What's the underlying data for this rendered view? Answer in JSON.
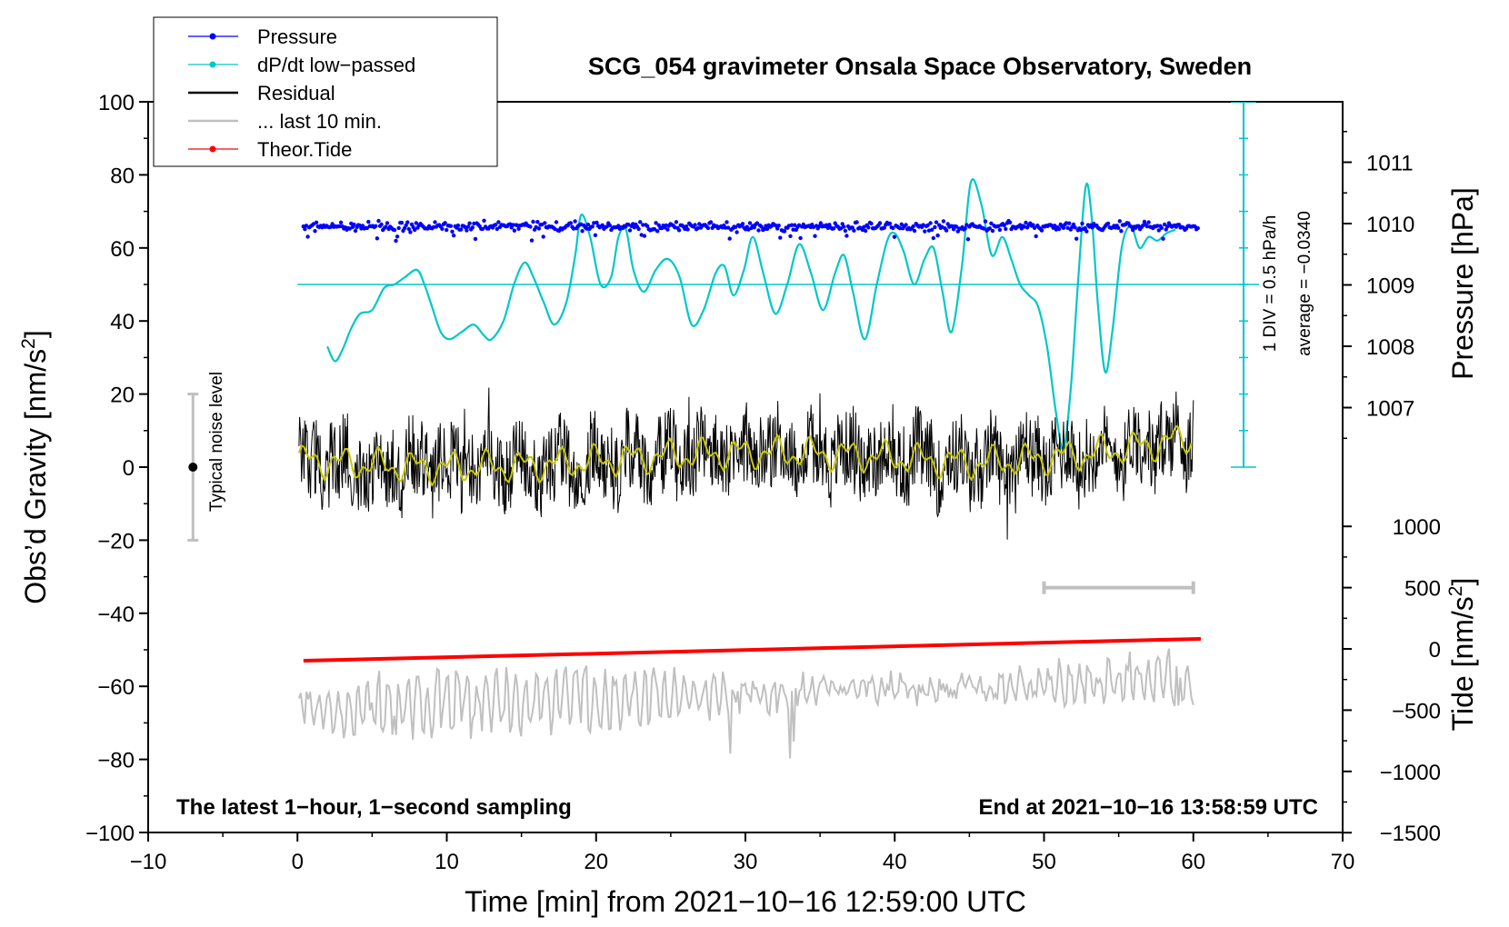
{
  "chart_data": {
    "type": "line",
    "title": "SCG_054 gravimeter Onsala Space Observatory, Sweden",
    "xlabel": "Time [min] from 2021−10−16 12:59:00 UTC",
    "ylabel_left": "Obs’d Gravity [nm/s",
    "ylabel_left_sup": "2",
    "ylabel_left_tail": "]",
    "ylabel_right_pressure": "Pressure [hPa]",
    "ylabel_right_tide": "Tide [nm/s",
    "ylabel_right_tide_sup": "2",
    "ylabel_right_tide_tail": "]",
    "xlim": [
      -10,
      70
    ],
    "ylim": [
      -100,
      100
    ],
    "x_ticks": [
      "−10",
      "0",
      "10",
      "20",
      "30",
      "40",
      "50",
      "60",
      "70"
    ],
    "y_ticks_left": [
      "100",
      "80",
      "60",
      "40",
      "20",
      "0",
      "−20",
      "−40",
      "−60",
      "−80",
      "−100"
    ],
    "pressure_ticks": [
      "1011",
      "1010",
      "1009",
      "1008",
      "1007"
    ],
    "tide_ticks": [
      "1000",
      "500",
      "0",
      "−500",
      "−1000",
      "−1500"
    ],
    "legend": [
      {
        "label": "Pressure",
        "color": "#0000ff",
        "style": "line-dot"
      },
      {
        "label": "dP/dt low−passed",
        "color": "#00c8c8",
        "style": "line-dot"
      },
      {
        "label": "Residual",
        "color": "#000000",
        "style": "line"
      },
      {
        "label": "... last 10 min.",
        "color": "#c0c0c0",
        "style": "line"
      },
      {
        "label": "Theor.Tide",
        "color": "#ff0000",
        "style": "line-dot"
      }
    ],
    "noise_label": "Typical noise level",
    "dpdt_scale": "1 DIV = 0.5 hPa/h",
    "dpdt_average": "average = −0.0340",
    "corner_left": "The latest 1−hour, 1−second sampling",
    "corner_right": "End at 2021−10−16 13:58:59 UTC",
    "series": {
      "pressure_hPa": {
        "x": [
          0.4,
          60.3
        ],
        "level": 1009.95
      },
      "dpdt_plot_units": {
        "x": [
          2.0,
          2.5,
          3.0,
          3.6,
          4.2,
          5.0,
          5.8,
          6.5,
          7.2,
          8.0,
          8.5,
          9.0,
          9.6,
          10.2,
          11.0,
          11.8,
          12.5,
          13.0,
          13.8,
          14.5,
          15.2,
          15.8,
          16.5,
          17.2,
          18.0,
          18.6,
          19.0,
          19.6,
          20.3,
          21.0,
          21.5,
          22.0,
          22.5,
          23.2,
          24.0,
          24.8,
          25.6,
          26.4,
          27.2,
          28.0,
          28.6,
          29.2,
          29.9,
          30.5,
          31.2,
          32.0,
          32.8,
          33.6,
          34.4,
          35.2,
          36.0,
          36.6,
          37.2,
          38.0,
          38.8,
          39.5,
          40.0,
          40.6,
          41.3,
          42.0,
          42.6,
          43.2,
          43.8,
          44.5,
          45.1,
          45.8,
          46.5,
          47.2,
          47.8,
          48.4,
          49.0,
          49.6,
          50.2,
          50.8,
          51.3,
          51.8,
          52.3,
          52.8,
          53.2,
          53.6,
          54.1,
          54.6,
          55.2,
          55.8,
          56.4,
          57.0,
          57.6,
          58.2,
          58.8
        ],
        "y": [
          33,
          29,
          32,
          38,
          42,
          43,
          49,
          50,
          52,
          54,
          50,
          44,
          37,
          35,
          37,
          39,
          36,
          35,
          40,
          50,
          56,
          52,
          45,
          39,
          45,
          58,
          69,
          63,
          50,
          52,
          63,
          65,
          54,
          48,
          54,
          57,
          52,
          39,
          43,
          53,
          55,
          47,
          54,
          63,
          53,
          42,
          50,
          61,
          53,
          43,
          53,
          58,
          48,
          35,
          50,
          62,
          64,
          59,
          50,
          57,
          60,
          48,
          37,
          55,
          78,
          72,
          58,
          63,
          57,
          50,
          47,
          44,
          33,
          15,
          5,
          22,
          52,
          77,
          68,
          45,
          26,
          38,
          60,
          66,
          60,
          63,
          62,
          64,
          65
        ]
      },
      "residual_nm_s2": {
        "x": [
          0.1,
          60.0
        ],
        "mean_start": 2,
        "mean_end": 9
      },
      "residual_smoothed_nm_s2": {
        "color": "#c8c800"
      },
      "last_10_min_marker": {
        "x": [
          50,
          60
        ],
        "y": -33
      },
      "theor_tide_nm_s2": {
        "x": [
          0.4,
          60.5
        ],
        "y": [
          -53,
          -47
        ]
      },
      "tide_trace_nm_s2": {
        "x": [
          0.1,
          60.0
        ],
        "y_start": -66,
        "y_end": -58
      }
    }
  }
}
